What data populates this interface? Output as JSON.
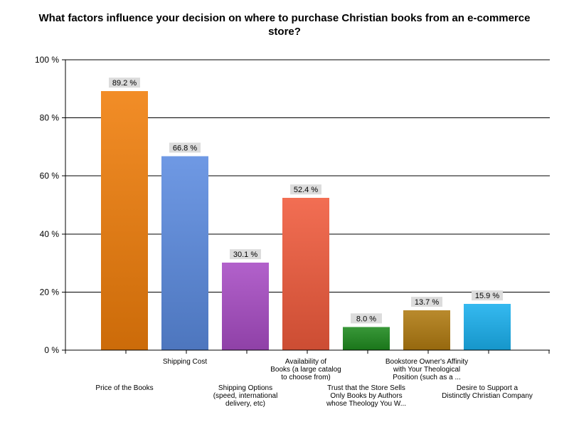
{
  "chart_data": {
    "type": "bar",
    "title": "What factors influence your decision on where to purchase Christian books from an e-commerce store?",
    "categories": [
      [
        "Price of the Books"
      ],
      [
        "Shipping Cost"
      ],
      [
        "Shipping Options",
        "(speed, international",
        "delivery, etc)"
      ],
      [
        "Availability of",
        "Books (a large catalog",
        "to choose from)"
      ],
      [
        "Trust that the Store Sells",
        "Only Books by Authors",
        "whose Theology You W..."
      ],
      [
        "Bookstore Owner's Affinity",
        "with Your Theological",
        "Position (such as a ..."
      ],
      [
        "Desire to Support a",
        "Distinctly Christian Company"
      ]
    ],
    "values": [
      89.2,
      66.8,
      30.1,
      52.4,
      8.0,
      13.7,
      15.9
    ],
    "value_labels": [
      "89.2 %",
      "66.8 %",
      "30.1 %",
      "52.4 %",
      "8.0 %",
      "13.7 %",
      "15.9 %"
    ],
    "colors": [
      "#f07e0a",
      "#5b8be0",
      "#a84cc4",
      "#f05a3c",
      "#1e8a1e",
      "#b07a10",
      "#1ab0ee"
    ],
    "ylim": [
      0,
      100
    ],
    "yticks": [
      "0 %",
      "20 %",
      "40 %",
      "60 %",
      "80 %",
      "100 %"
    ],
    "grid": true,
    "xlabel": "",
    "ylabel": ""
  }
}
